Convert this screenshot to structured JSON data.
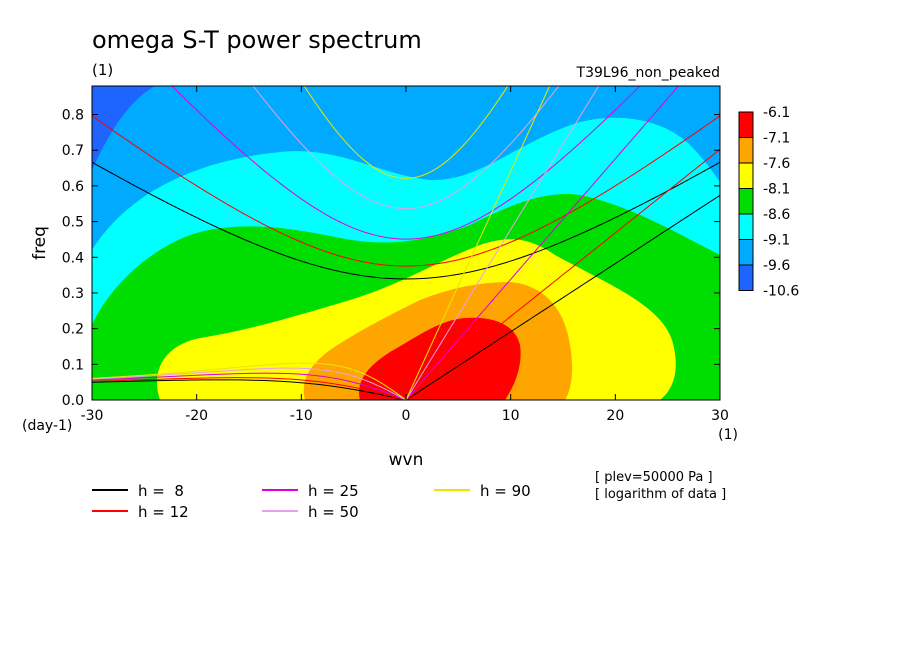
{
  "chart_data": {
    "type": "heatmap",
    "title": "omega S-T power spectrum",
    "subtitle_left": "(1)",
    "subtitle_right": "T39L96_non_peaked",
    "xlabel": "wvn",
    "ylabel": "freq",
    "x_unit": "(1)",
    "y_unit": "(day-1)",
    "xlim": [
      -30,
      30
    ],
    "ylim": [
      0,
      0.88
    ],
    "x_ticks": [
      -30,
      -20,
      -10,
      0,
      10,
      20,
      30
    ],
    "x_tick_labels": [
      "-30",
      "-20",
      "-10",
      "0",
      "10",
      "20",
      "30"
    ],
    "y_ticks": [
      0.0,
      0.1,
      0.2,
      0.3,
      0.4,
      0.5,
      0.6,
      0.7,
      0.8
    ],
    "y_tick_labels": [
      "0.0",
      "0.1",
      "0.2",
      "0.3",
      "0.4",
      "0.5",
      "0.6",
      "0.7",
      "0.8"
    ],
    "levels": [
      {
        "label": "-6.1",
        "color": "#ff0000"
      },
      {
        "label": "-7.1",
        "color": "#ffa500"
      },
      {
        "label": "-7.6",
        "color": "#ffff00"
      },
      {
        "label": "-8.1",
        "color": "#00dd00"
      },
      {
        "label": "-8.6",
        "color": "#00ffff"
      },
      {
        "label": "-9.1",
        "color": "#00aaff"
      },
      {
        "label": "-9.6",
        "color": "#1e64ff"
      },
      {
        "label": "-10.6",
        "color": "#ffffff"
      }
    ],
    "dispersion_legend": [
      {
        "label": "h =  8",
        "color": "#000000"
      },
      {
        "label": "h = 12",
        "color": "#ff0000"
      },
      {
        "label": "h = 25",
        "color": "#dd00dd"
      },
      {
        "label": "h = 50",
        "color": "#e8a0e8"
      },
      {
        "label": "h = 90",
        "color": "#e8e800"
      }
    ],
    "notes": [
      "[ plev=50000 Pa ]",
      "[ logarithm of data ]"
    ]
  }
}
